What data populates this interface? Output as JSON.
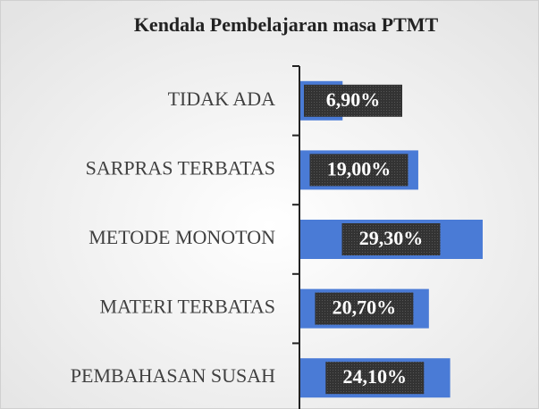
{
  "chart_data": {
    "type": "bar",
    "orientation": "horizontal",
    "title": "Kendala Pembelajaran masa PTMT",
    "categories": [
      "TIDAK ADA",
      "SARPRAS TERBATAS",
      "METODE MONOTON",
      "MATERI TERBATAS",
      "PEMBAHASAN SUSAH"
    ],
    "values": [
      6.9,
      19.0,
      29.3,
      20.7,
      24.1
    ],
    "value_labels": [
      "6,90%",
      "19,00%",
      "29,30%",
      "20,70%",
      "24,10%"
    ],
    "color": "#4a7bd6"
  }
}
